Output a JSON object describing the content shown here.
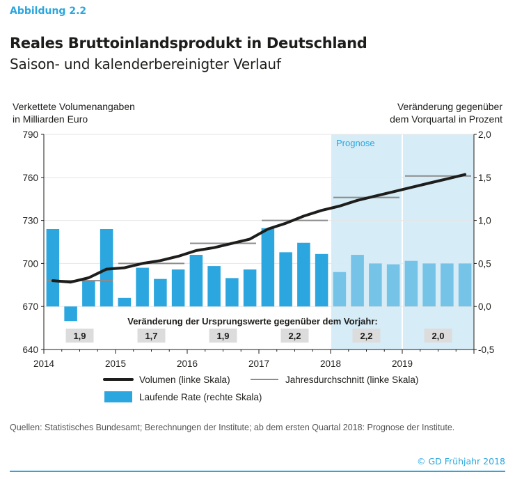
{
  "figure_label": "Abbildung 2.2",
  "title": "Reales Bruttoinlandsprodukt in Deutschland",
  "subtitle": "Saison- und kalenderbereinigter Verlauf",
  "source": "Quellen: Statistisches Bundesamt; Berechnungen der Institute; ab dem ersten Quartal 2018: Prognose der Institute.",
  "copyright": "© GD Frühjahr 2018",
  "colors": {
    "accent": "#2ba6de",
    "bar_actual": "#2ba6de",
    "bar_forecast": "#76c3e8",
    "forecast_shade": "#d6ecf7",
    "volume_line": "#1d1d1b",
    "avg_line": "#8c8c8c",
    "annual_box": "#dcdcdc"
  },
  "chart_data": {
    "type": "bar+line",
    "left_axis_label": [
      "Verkettete Volumenangaben",
      "in Milliarden Euro"
    ],
    "right_axis_label": [
      "Veränderung gegenüber",
      "dem Vorquartal in Prozent"
    ],
    "left_ylim": [
      640,
      790
    ],
    "left_ticks": [
      640,
      670,
      700,
      730,
      760,
      790
    ],
    "right_ylim": [
      -0.5,
      2.0
    ],
    "right_ticks": [
      "-0,5",
      "0,0",
      "0,5",
      "1,0",
      "1,5",
      "2,0"
    ],
    "years": [
      "2014",
      "2015",
      "2016",
      "2017",
      "2018",
      "2019"
    ],
    "forecast_label": "Prognose",
    "forecast_start_index": 16,
    "quarter_rate": [
      0.9,
      -0.17,
      0.3,
      0.9,
      0.1,
      0.45,
      0.32,
      0.43,
      0.6,
      0.47,
      0.33,
      0.43,
      0.91,
      0.63,
      0.74,
      0.61,
      0.4,
      0.6,
      0.5,
      0.49,
      0.53,
      0.5,
      0.5,
      0.5
    ],
    "volume": [
      688,
      687,
      690,
      696,
      697,
      700,
      702,
      705,
      709,
      711,
      714,
      717,
      724,
      728,
      733,
      737,
      740,
      744,
      747,
      750,
      753,
      756,
      759,
      762
    ],
    "annual_average": [
      {
        "year": "2014",
        "value": 688
      },
      {
        "year": "2015",
        "value": 700
      },
      {
        "year": "2016",
        "value": 714
      },
      {
        "year": "2017",
        "value": 730
      },
      {
        "year": "2018",
        "value": 746
      },
      {
        "year": "2019",
        "value": 761
      }
    ],
    "annual_growth_title": "Veränderung der Ursprungswerte gegenüber dem Vorjahr:",
    "annual_growth": [
      {
        "year": "2014",
        "value": "1,9"
      },
      {
        "year": "2015",
        "value": "1,7"
      },
      {
        "year": "2016",
        "value": "1,9"
      },
      {
        "year": "2017",
        "value": "2,2"
      },
      {
        "year": "2018",
        "value": "2,2"
      },
      {
        "year": "2019",
        "value": "2,0"
      }
    ],
    "legend": {
      "volume": "Volumen (linke Skala)",
      "average": "Jahresdurchschnitt (linke Skala)",
      "rate": "Laufende Rate (rechte Skala)"
    }
  }
}
